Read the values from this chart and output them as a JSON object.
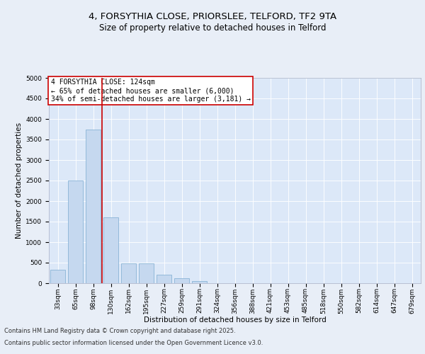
{
  "title_line1": "4, FORSYTHIA CLOSE, PRIORSLEE, TELFORD, TF2 9TA",
  "title_line2": "Size of property relative to detached houses in Telford",
  "xlabel": "Distribution of detached houses by size in Telford",
  "ylabel": "Number of detached properties",
  "categories": [
    "33sqm",
    "65sqm",
    "98sqm",
    "130sqm",
    "162sqm",
    "195sqm",
    "227sqm",
    "259sqm",
    "291sqm",
    "324sqm",
    "356sqm",
    "388sqm",
    "421sqm",
    "453sqm",
    "485sqm",
    "518sqm",
    "550sqm",
    "582sqm",
    "614sqm",
    "647sqm",
    "679sqm"
  ],
  "values": [
    330,
    2500,
    3750,
    1600,
    490,
    490,
    200,
    120,
    60,
    0,
    0,
    0,
    0,
    0,
    0,
    0,
    0,
    0,
    0,
    0,
    0
  ],
  "bar_color": "#c5d8ef",
  "bar_edge_color": "#7aaad0",
  "vline_x_index": 2,
  "vline_color": "#cc0000",
  "annotation_text": "4 FORSYTHIA CLOSE: 124sqm\n← 65% of detached houses are smaller (6,000)\n34% of semi-detached houses are larger (3,181) →",
  "annotation_box_color": "#ffffff",
  "annotation_box_edge": "#cc0000",
  "ylim": [
    0,
    5000
  ],
  "yticks": [
    0,
    500,
    1000,
    1500,
    2000,
    2500,
    3000,
    3500,
    4000,
    4500,
    5000
  ],
  "bg_color": "#e8eef7",
  "plot_bg_color": "#dce8f8",
  "footer_line1": "Contains HM Land Registry data © Crown copyright and database right 2025.",
  "footer_line2": "Contains public sector information licensed under the Open Government Licence v3.0.",
  "title_fontsize": 9.5,
  "subtitle_fontsize": 8.5,
  "label_fontsize": 7.5,
  "tick_fontsize": 6.5,
  "annot_fontsize": 7,
  "footer_fontsize": 6
}
